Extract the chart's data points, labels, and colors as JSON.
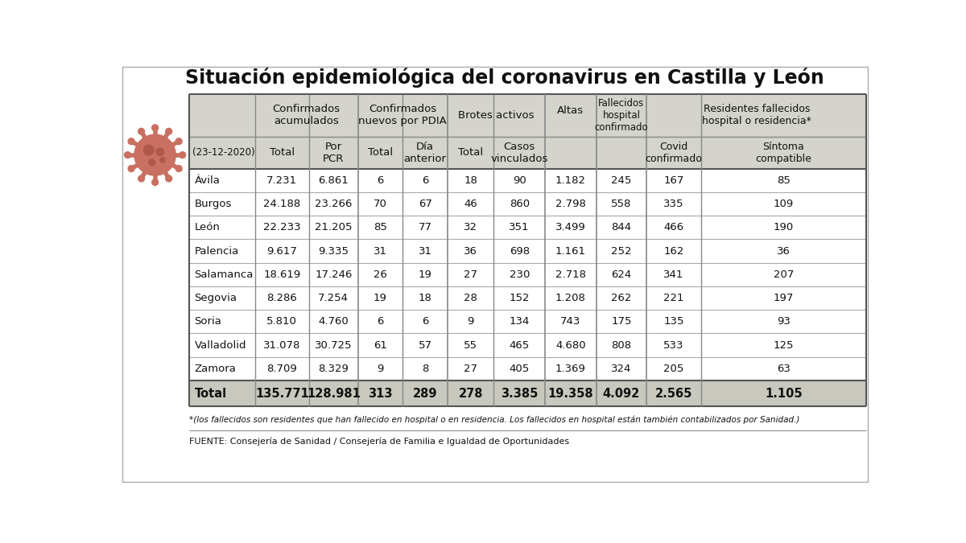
{
  "title": "Situación epidemiológica del coronavirus en Castilla y León",
  "date_label": "(23-12-2020)",
  "provinces": [
    "Ávila",
    "Burgos",
    "León",
    "Palencia",
    "Salamanca",
    "Segovia",
    "Soria",
    "Valladolid",
    "Zamora"
  ],
  "data": [
    [
      "7.231",
      "6.861",
      "6",
      "6",
      "18",
      "90",
      "1.182",
      "245",
      "167",
      "85"
    ],
    [
      "24.188",
      "23.266",
      "70",
      "67",
      "46",
      "860",
      "2.798",
      "558",
      "335",
      "109"
    ],
    [
      "22.233",
      "21.205",
      "85",
      "77",
      "32",
      "351",
      "3.499",
      "844",
      "466",
      "190"
    ],
    [
      "9.617",
      "9.335",
      "31",
      "31",
      "36",
      "698",
      "1.161",
      "252",
      "162",
      "36"
    ],
    [
      "18.619",
      "17.246",
      "26",
      "19",
      "27",
      "230",
      "2.718",
      "624",
      "341",
      "207"
    ],
    [
      "8.286",
      "7.254",
      "19",
      "18",
      "28",
      "152",
      "1.208",
      "262",
      "221",
      "197"
    ],
    [
      "5.810",
      "4.760",
      "6",
      "6",
      "9",
      "134",
      "743",
      "175",
      "135",
      "93"
    ],
    [
      "31.078",
      "30.725",
      "61",
      "57",
      "55",
      "465",
      "4.680",
      "808",
      "533",
      "125"
    ],
    [
      "8.709",
      "8.329",
      "9",
      "8",
      "27",
      "405",
      "1.369",
      "324",
      "205",
      "63"
    ]
  ],
  "total_row": [
    "135.771",
    "128.981",
    "313",
    "289",
    "278",
    "3.385",
    "19.358",
    "4.092",
    "2.565",
    "1.105"
  ],
  "footnote": "*(los fallecidos son residentes que han fallecido en hospital o en residencia. Los fallecidos en hospital están también contabilizados por Sanidad.)",
  "source": "FUENTE: Consejería de Sanidad / Consejería de Familia e Igualdad de Oportunidades",
  "bg_color": "#ffffff",
  "header_bg": "#d8d8d0",
  "total_bg": "#c8c8c0",
  "virus_body": "#c97060",
  "virus_inner": "#d98878",
  "virus_spots": "#b05848"
}
